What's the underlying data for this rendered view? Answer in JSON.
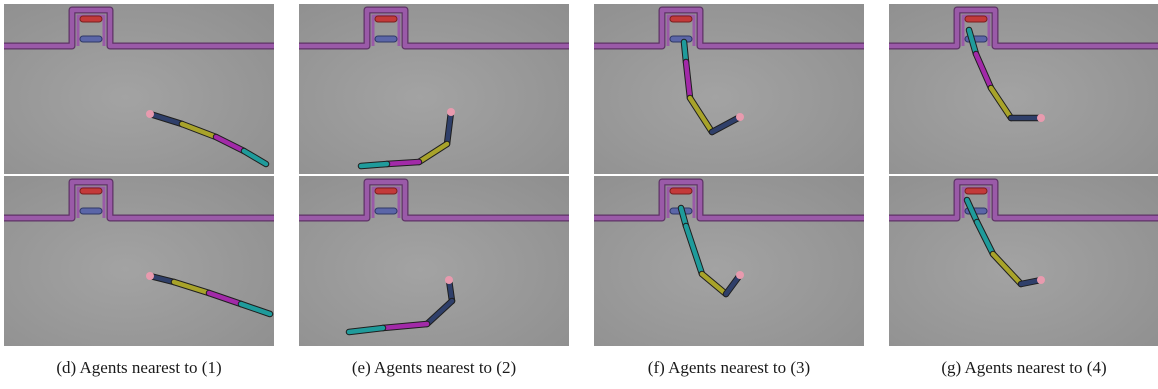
{
  "figure": {
    "columns": [
      {
        "caption": "(d) Agents nearest to (1)"
      },
      {
        "caption": "(e) Agents nearest to (2)"
      },
      {
        "caption": "(f) Agents nearest to (3)"
      },
      {
        "caption": "(g) Agents nearest to (4)"
      }
    ]
  },
  "colors": {
    "background": "#8f8f8f",
    "wall": "#9a5aa8",
    "red_bar": "#c33a3a",
    "blue_bar": "#5b66a8",
    "arm_navy": "#2f3f6a",
    "arm_olive": "#a8a32a",
    "arm_magenta": "#a22aa8",
    "arm_cyan": "#1f9b9b",
    "joint_pink": "#e89aae"
  }
}
